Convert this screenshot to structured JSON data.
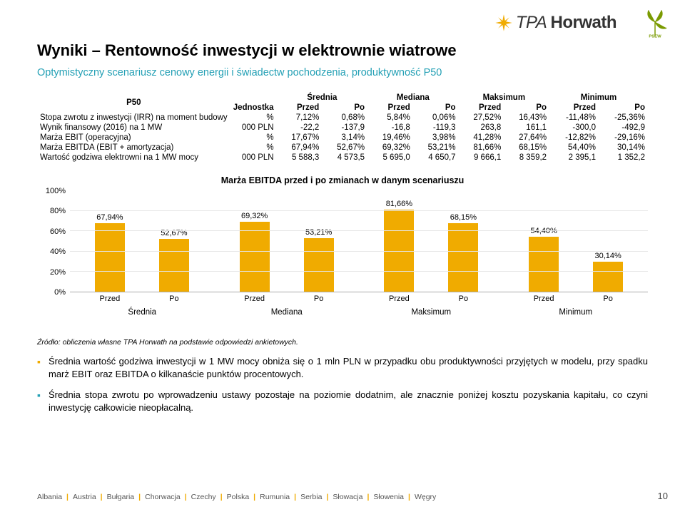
{
  "title": "Wyniki – Rentowność inwestycji w elektrownie wiatrowe",
  "subtitle": "Optymistyczny scenariusz cenowy energii i świadectw pochodzenia, produktywność P50",
  "logo_text_a": "TPA ",
  "logo_text_b": "Horwath",
  "table": {
    "corner_label": "P50",
    "unit_header": "Jednostka",
    "groups": [
      "Średnia",
      "Mediana",
      "Maksimum",
      "Minimum"
    ],
    "subcols": [
      "Przed",
      "Po"
    ],
    "rows": [
      {
        "label": "Stopa zwrotu z inwestycji (IRR) na moment budowy",
        "unit": "%",
        "cells": [
          "7,12%",
          "0,68%",
          "5,84%",
          "0,06%",
          "27,52%",
          "16,43%",
          "-11,48%",
          "-25,36%"
        ]
      },
      {
        "label": "Wynik finansowy (2016) na 1 MW",
        "unit": "000 PLN",
        "cells": [
          "-22,2",
          "-137,9",
          "-16,8",
          "-119,3",
          "263,8",
          "161,1",
          "-300,0",
          "-492,9"
        ]
      },
      {
        "label": "Marża EBIT (operacyjna)",
        "unit": "%",
        "cells": [
          "17,67%",
          "3,14%",
          "19,46%",
          "3,98%",
          "41,28%",
          "27,64%",
          "-12,82%",
          "-29,16%"
        ]
      },
      {
        "label": "Marża EBITDA (EBIT + amortyzacja)",
        "unit": "%",
        "cells": [
          "67,94%",
          "52,67%",
          "69,32%",
          "53,21%",
          "81,66%",
          "68,15%",
          "54,40%",
          "30,14%"
        ]
      },
      {
        "label": "Wartość godziwa elektrowni na 1 MW mocy",
        "unit": "000 PLN",
        "cells": [
          "5 588,3",
          "4 573,5",
          "5 695,0",
          "4 650,7",
          "9 666,1",
          "8 359,2",
          "2 395,1",
          "1 352,2"
        ]
      }
    ]
  },
  "chart": {
    "type": "bar",
    "title": "Marża EBITDA przed i po zmianach w danym scenariuszu",
    "ylim": [
      0,
      100
    ],
    "ytick_step": 20,
    "yticks": [
      "100%",
      "80%",
      "60%",
      "40%",
      "20%",
      "0%"
    ],
    "bar_color": "#f0ab00",
    "grid_color": "#e6e6e6",
    "background_color": "#ffffff",
    "groups": [
      {
        "name": "Średnia",
        "bars": [
          {
            "sub": "Przed",
            "value": 67.94,
            "label": "67,94%"
          },
          {
            "sub": "Po",
            "value": 52.67,
            "label": "52,67%"
          }
        ]
      },
      {
        "name": "Mediana",
        "bars": [
          {
            "sub": "Przed",
            "value": 69.32,
            "label": "69,32%"
          },
          {
            "sub": "Po",
            "value": 53.21,
            "label": "53,21%"
          }
        ]
      },
      {
        "name": "Maksimum",
        "bars": [
          {
            "sub": "Przed",
            "value": 81.66,
            "label": "81,66%"
          },
          {
            "sub": "Po",
            "value": 68.15,
            "label": "68,15%"
          }
        ]
      },
      {
        "name": "Minimum",
        "bars": [
          {
            "sub": "Przed",
            "value": 54.4,
            "label": "54,40%"
          },
          {
            "sub": "Po",
            "value": 30.14,
            "label": "30,14%"
          }
        ]
      }
    ]
  },
  "source": "Źródło: obliczenia własne TPA Horwath na podstawie odpowiedzi ankietowych.",
  "para1": "Średnia wartość godziwa inwestycji w 1 MW mocy obniża się o 1 mln PLN w przypadku obu produktywności przyjętych w modelu, przy spadku marż EBIT oraz EBITDA o kilkanaście punktów procentowych.",
  "para2": "Średnia stopa zwrotu po wprowadzeniu ustawy pozostaje na poziomie dodatnim, ale znacznie poniżej kosztu pozyskania kapitału, co czyni inwestycję całkowicie nieopłacalną.",
  "footer_countries": [
    "Albania",
    "Austria",
    "Bułgaria",
    "Chorwacja",
    "Czechy",
    "Polska",
    "Rumunia",
    "Serbia",
    "Słowacja",
    "Słowenia",
    "Węgry"
  ],
  "page_number": "10"
}
